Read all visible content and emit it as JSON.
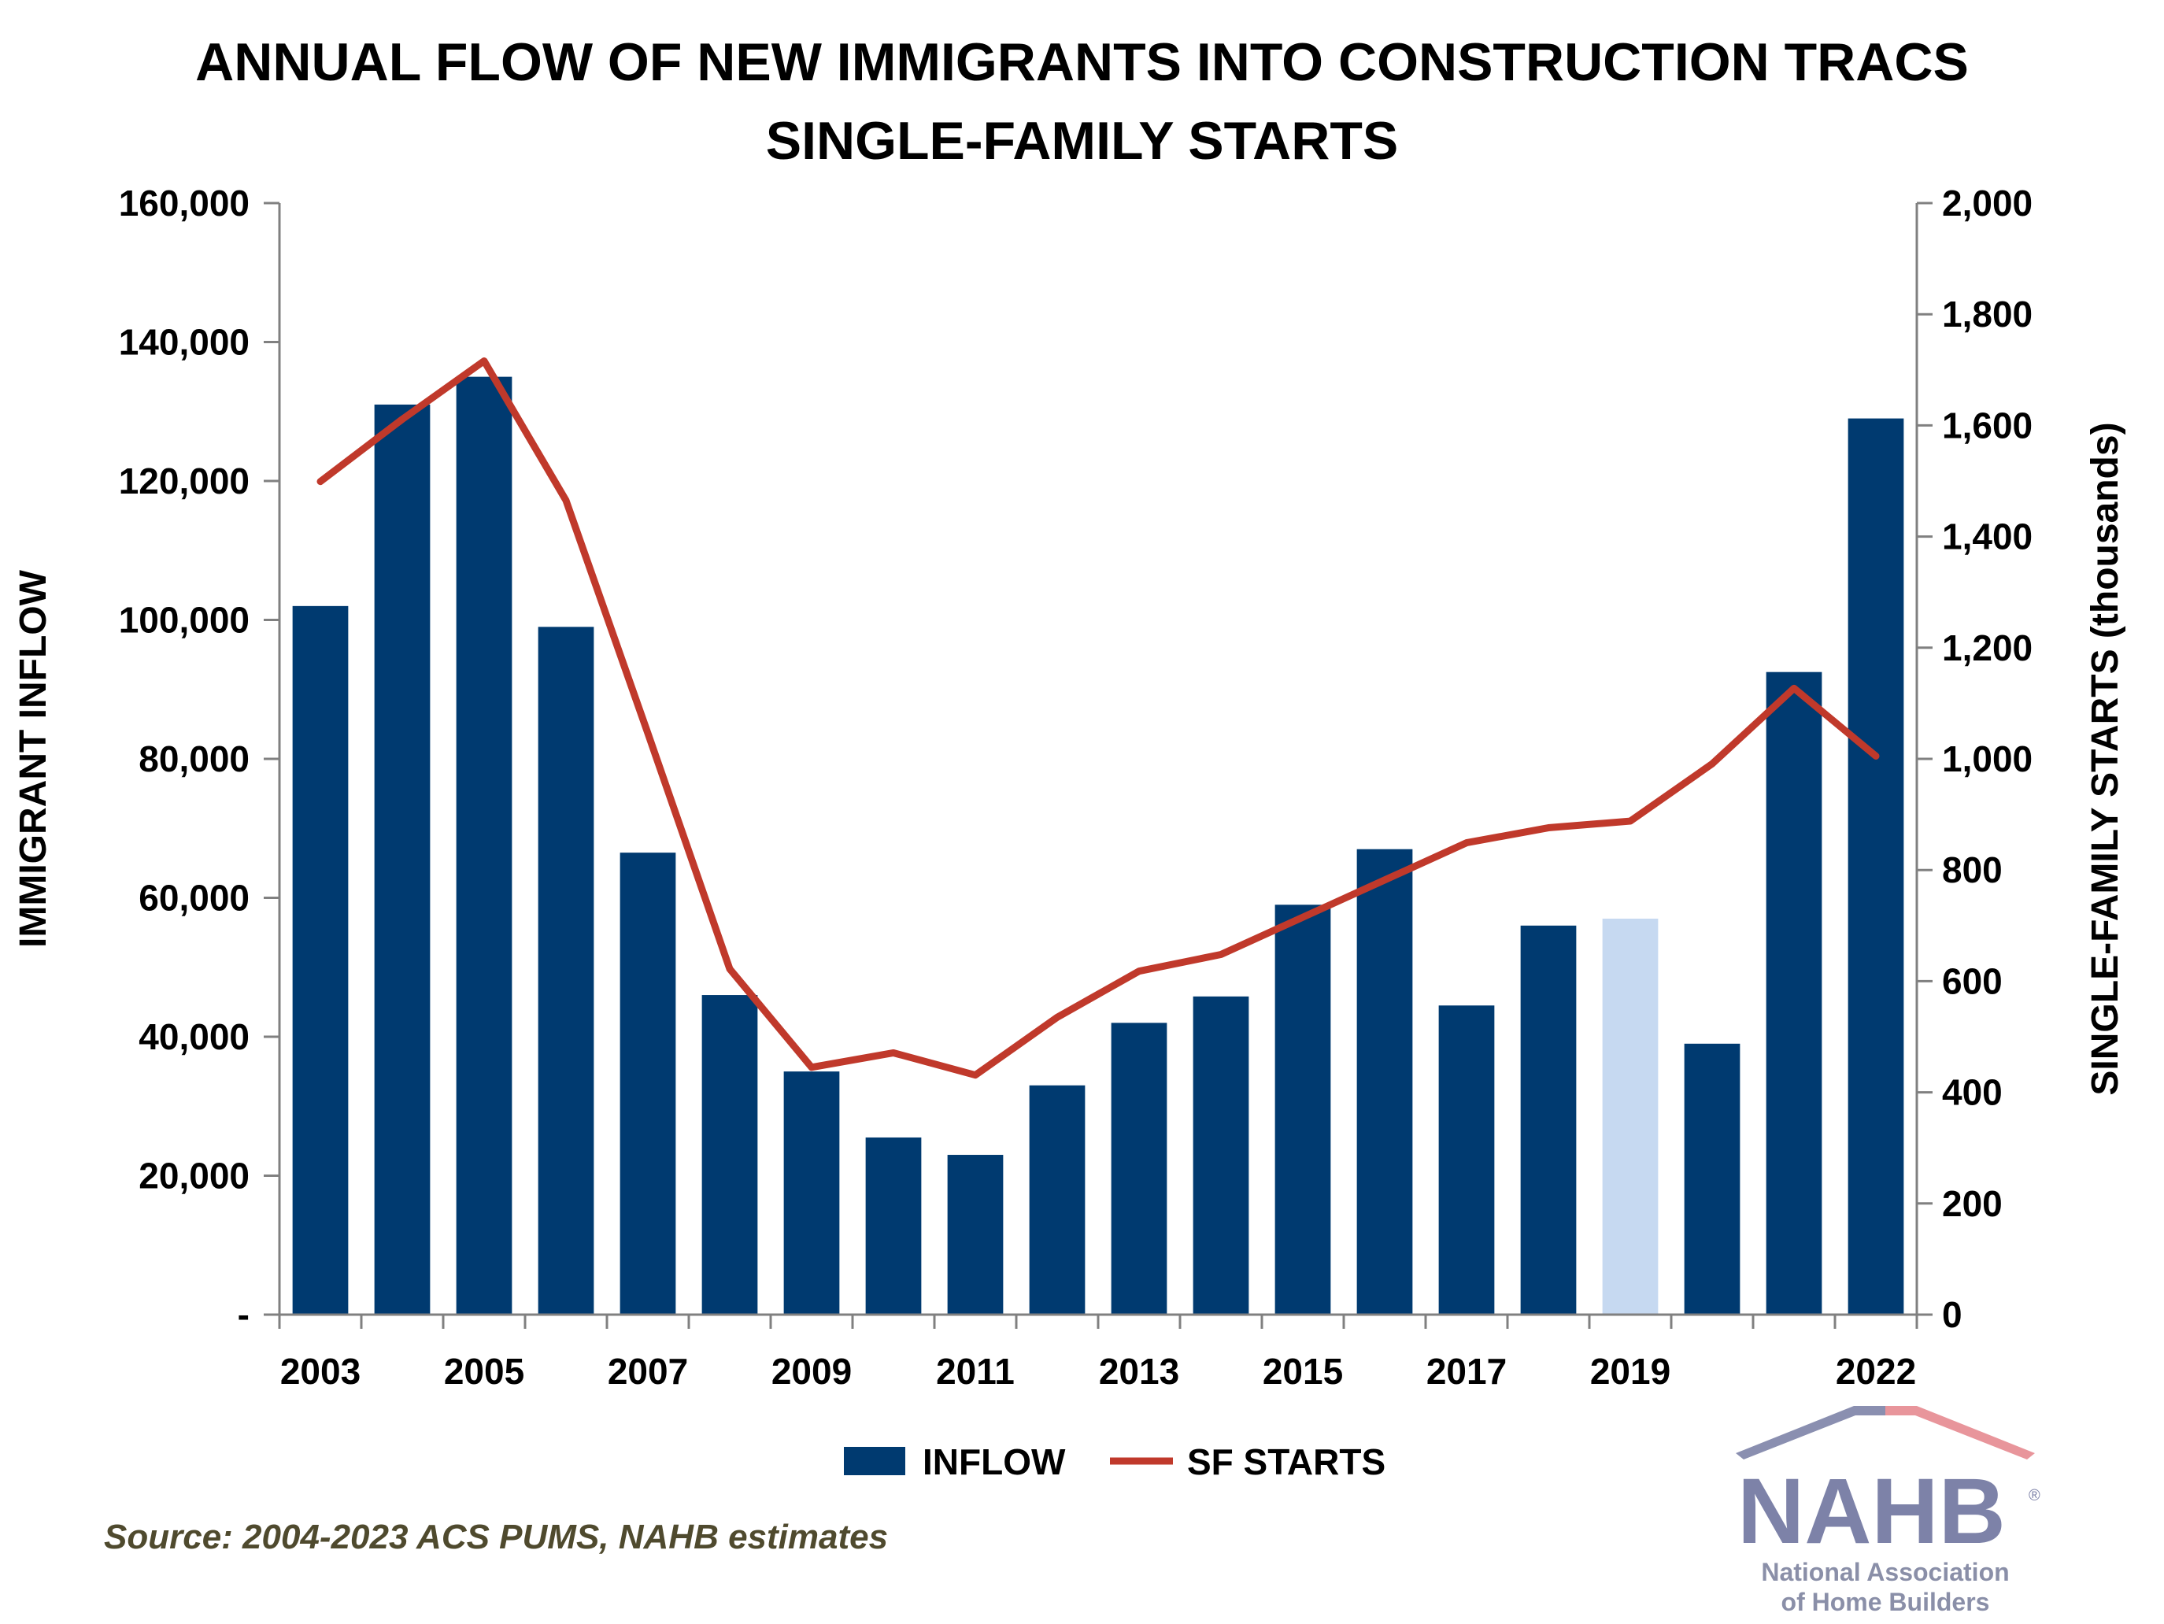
{
  "title_line1": "ANNUAL FLOW OF NEW IMMIGRANTS INTO CONSTRUCTION TRACS",
  "title_line2": "SINGLE-FAMILY STARTS",
  "source": "Source: 2004-2023 ACS PUMS, NAHB estimates",
  "logo": {
    "text": "NAHB",
    "registered": "®",
    "line1": "National Association",
    "line2": "of Home Builders"
  },
  "colors": {
    "inflow": "#003a70",
    "inflow_highlight": "#c6d9f1",
    "sf_starts": "#c0392b",
    "text": "#000000",
    "source": "#4f4a2e"
  },
  "chart_data": {
    "type": "bar",
    "x": [
      2003,
      2004,
      2005,
      2006,
      2007,
      2008,
      2009,
      2010,
      2011,
      2012,
      2013,
      2014,
      2015,
      2016,
      2017,
      2018,
      2019,
      2020,
      2021,
      2022
    ],
    "x_tick_labels": [
      "2003",
      "2005",
      "2007",
      "2009",
      "2011",
      "2013",
      "2015",
      "2017",
      "2019",
      "2022"
    ],
    "x_tick_years": [
      2003,
      2005,
      2007,
      2009,
      2011,
      2013,
      2015,
      2017,
      2019,
      2022
    ],
    "highlight_year": 2019,
    "series": [
      {
        "name": "INFLOW",
        "type": "bar",
        "axis": "left",
        "values": [
          102000,
          131000,
          135000,
          99000,
          66500,
          46000,
          35000,
          25500,
          23000,
          33000,
          42000,
          45800,
          59000,
          67000,
          44500,
          56000,
          57000,
          39000,
          92500,
          129000
        ]
      },
      {
        "name": "SF STARTS",
        "type": "line",
        "axis": "right",
        "values": [
          1499,
          1611,
          1716,
          1465,
          1046,
          622,
          445,
          471,
          431,
          535,
          618,
          648,
          715,
          782,
          849,
          876,
          888,
          991,
          1127,
          1005
        ]
      }
    ],
    "ylabel": "IMMIGRANT INFLOW",
    "ylabel_right": "SINGLE-FAMILY STARTS (thousands)",
    "ylim": [
      0,
      160000
    ],
    "ylim_right": [
      0,
      2000
    ],
    "y_tick_labels": [
      "-",
      "20,000",
      "40,000",
      "60,000",
      "80,000",
      "100,000",
      "120,000",
      "140,000",
      "160,000"
    ],
    "y_tick_labels_right": [
      "0",
      "200",
      "400",
      "600",
      "800",
      "1,000",
      "1,200",
      "1,400",
      "1,600",
      "1,800",
      "2,000"
    ],
    "grid": false,
    "legend": "bottom-center"
  }
}
